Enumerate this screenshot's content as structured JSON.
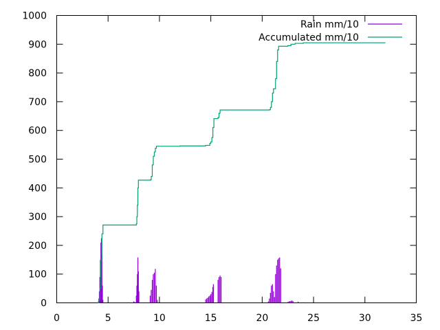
{
  "chart_data": {
    "type": "line",
    "title": "",
    "xlabel": "",
    "ylabel": "",
    "xlim": [
      0,
      35
    ],
    "ylim": [
      0,
      1000
    ],
    "x_ticks": [
      0,
      5,
      10,
      15,
      20,
      25,
      30,
      35
    ],
    "y_ticks": [
      0,
      100,
      200,
      300,
      400,
      500,
      600,
      700,
      800,
      900,
      1000
    ],
    "grid": false,
    "legend_position": "top-right",
    "series": [
      {
        "name": "Rain mm/10",
        "style": "impulses",
        "color": "#9400d3",
        "points": [
          [
            4.05,
            5
          ],
          [
            4.1,
            15
          ],
          [
            4.15,
            40
          ],
          [
            4.2,
            90
          ],
          [
            4.25,
            150
          ],
          [
            4.3,
            210
          ],
          [
            4.35,
            225
          ],
          [
            4.4,
            170
          ],
          [
            4.45,
            60
          ],
          [
            4.5,
            10
          ],
          [
            7.0,
            2
          ],
          [
            7.5,
            5
          ],
          [
            7.6,
            3
          ],
          [
            7.75,
            25
          ],
          [
            7.8,
            60
          ],
          [
            7.85,
            100
          ],
          [
            7.9,
            158
          ],
          [
            7.95,
            110
          ],
          [
            8.0,
            40
          ],
          [
            9.1,
            25
          ],
          [
            9.2,
            45
          ],
          [
            9.3,
            80
          ],
          [
            9.4,
            100
          ],
          [
            9.5,
            105
          ],
          [
            9.6,
            118
          ],
          [
            9.7,
            60
          ],
          [
            9.8,
            10
          ],
          [
            14.5,
            12
          ],
          [
            14.6,
            15
          ],
          [
            14.7,
            18
          ],
          [
            14.8,
            22
          ],
          [
            14.9,
            25
          ],
          [
            15.0,
            30
          ],
          [
            15.1,
            38
          ],
          [
            15.2,
            55
          ],
          [
            15.25,
            65
          ],
          [
            15.7,
            80
          ],
          [
            15.8,
            90
          ],
          [
            15.9,
            95
          ],
          [
            16.0,
            90
          ],
          [
            20.6,
            5
          ],
          [
            20.7,
            15
          ],
          [
            20.8,
            35
          ],
          [
            20.9,
            60
          ],
          [
            21.0,
            65
          ],
          [
            21.1,
            40
          ],
          [
            21.2,
            20
          ],
          [
            21.3,
            100
          ],
          [
            21.4,
            130
          ],
          [
            21.5,
            150
          ],
          [
            21.6,
            155
          ],
          [
            21.7,
            158
          ],
          [
            21.8,
            120
          ],
          [
            22.5,
            3
          ],
          [
            22.6,
            5
          ],
          [
            22.7,
            6
          ],
          [
            22.8,
            7
          ],
          [
            22.9,
            8
          ],
          [
            23.0,
            6
          ],
          [
            23.5,
            4
          ],
          [
            24.0,
            2
          ]
        ]
      },
      {
        "name": "Accumulated mm/10",
        "style": "steps",
        "color": "#009e73",
        "points": [
          [
            4.0,
            0
          ],
          [
            4.1,
            10
          ],
          [
            4.2,
            50
          ],
          [
            4.3,
            150
          ],
          [
            4.4,
            240
          ],
          [
            4.5,
            271
          ],
          [
            7.6,
            271
          ],
          [
            7.75,
            275
          ],
          [
            7.8,
            300
          ],
          [
            7.85,
            340
          ],
          [
            7.9,
            400
          ],
          [
            7.95,
            427
          ],
          [
            9.1,
            428
          ],
          [
            9.2,
            440
          ],
          [
            9.3,
            480
          ],
          [
            9.4,
            510
          ],
          [
            9.5,
            525
          ],
          [
            9.6,
            538
          ],
          [
            9.7,
            545
          ],
          [
            12.0,
            546
          ],
          [
            14.5,
            548
          ],
          [
            14.9,
            555
          ],
          [
            15.0,
            560
          ],
          [
            15.1,
            575
          ],
          [
            15.2,
            610
          ],
          [
            15.3,
            641
          ],
          [
            15.7,
            645
          ],
          [
            15.8,
            660
          ],
          [
            15.9,
            671
          ],
          [
            20.7,
            672
          ],
          [
            20.8,
            680
          ],
          [
            20.9,
            700
          ],
          [
            21.0,
            730
          ],
          [
            21.1,
            745
          ],
          [
            21.3,
            780
          ],
          [
            21.4,
            840
          ],
          [
            21.5,
            880
          ],
          [
            21.6,
            893
          ],
          [
            22.5,
            895
          ],
          [
            22.8,
            900
          ],
          [
            23.2,
            903
          ],
          [
            24.0,
            905
          ],
          [
            32.0,
            905
          ]
        ]
      }
    ]
  }
}
